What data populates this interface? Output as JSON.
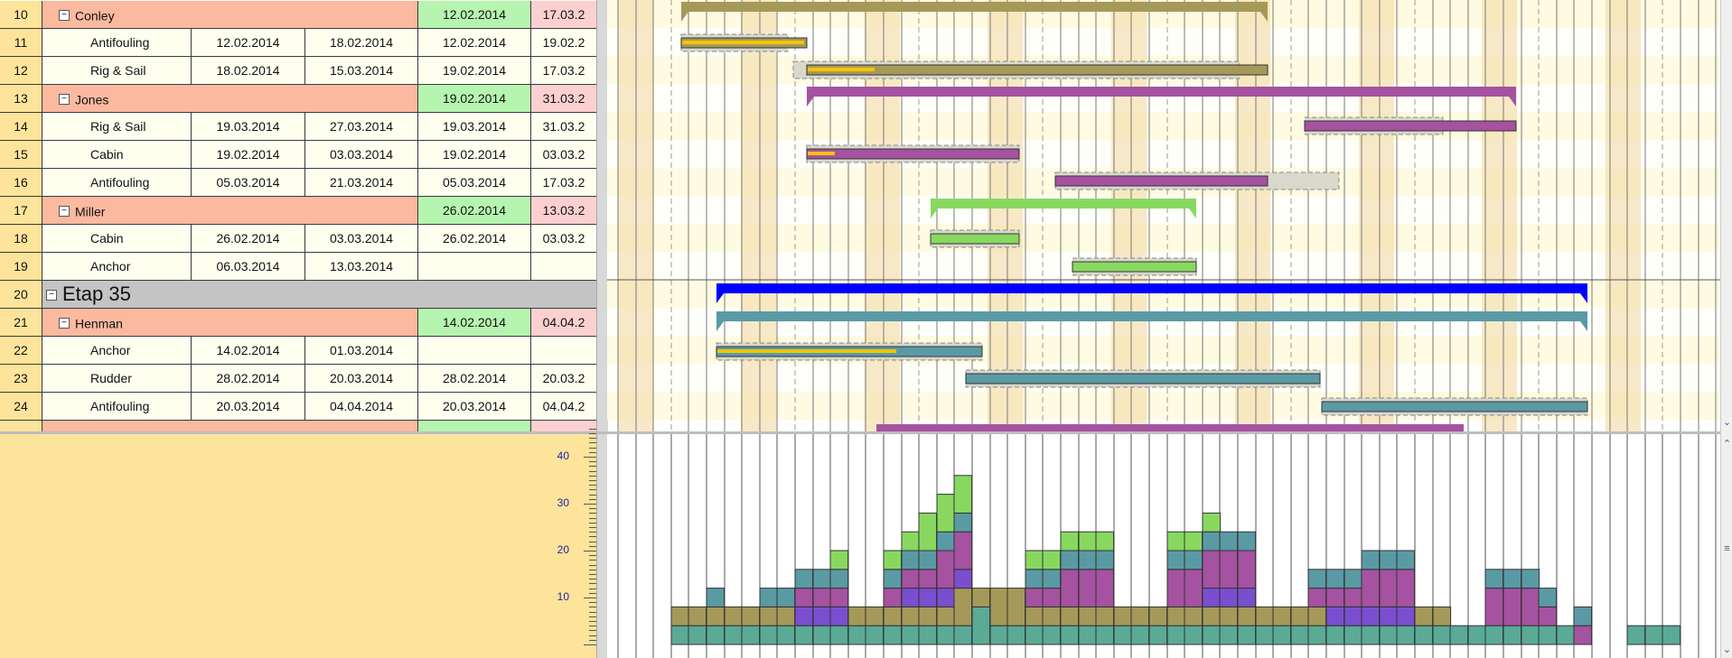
{
  "table": {
    "rows": [
      {
        "num": "10",
        "kind": "group",
        "name": "Conley",
        "d3": "12.02.2014",
        "d4": "17.03.2"
      },
      {
        "num": "11",
        "kind": "task",
        "name": "Antifouling",
        "d1": "12.02.2014",
        "d2": "18.02.2014",
        "d3": "12.02.2014",
        "d4": "19.02.2"
      },
      {
        "num": "12",
        "kind": "task",
        "name": "Rig & Sail",
        "d1": "18.02.2014",
        "d2": "15.03.2014",
        "d3": "19.02.2014",
        "d4": "17.03.2"
      },
      {
        "num": "13",
        "kind": "group",
        "name": "Jones",
        "d3": "19.02.2014",
        "d4": "31.03.2"
      },
      {
        "num": "14",
        "kind": "task",
        "name": "Rig & Sail",
        "d1": "19.03.2014",
        "d2": "27.03.2014",
        "d3": "19.03.2014",
        "d4": "31.03.2"
      },
      {
        "num": "15",
        "kind": "task",
        "name": "Cabin",
        "d1": "19.02.2014",
        "d2": "03.03.2014",
        "d3": "19.02.2014",
        "d4": "03.03.2"
      },
      {
        "num": "16",
        "kind": "task",
        "name": "Antifouling",
        "d1": "05.03.2014",
        "d2": "21.03.2014",
        "d3": "05.03.2014",
        "d4": "17.03.2"
      },
      {
        "num": "17",
        "kind": "group",
        "name": "Miller",
        "d3": "26.02.2014",
        "d4": "13.03.2"
      },
      {
        "num": "18",
        "kind": "task",
        "name": "Cabin",
        "d1": "26.02.2014",
        "d2": "03.03.2014",
        "d3": "26.02.2014",
        "d4": "03.03.2"
      },
      {
        "num": "19",
        "kind": "task",
        "name": "Anchor",
        "d1": "06.03.2014",
        "d2": "13.03.2014",
        "d3": "",
        "d4": ""
      },
      {
        "num": "20",
        "kind": "stage",
        "name": "Etap 35"
      },
      {
        "num": "21",
        "kind": "group",
        "name": "Henman",
        "d3": "14.02.2014",
        "d4": "04.04.2"
      },
      {
        "num": "22",
        "kind": "task",
        "name": "Anchor",
        "d1": "14.02.2014",
        "d2": "01.03.2014",
        "d3": "",
        "d4": ""
      },
      {
        "num": "23",
        "kind": "task",
        "name": "Rudder",
        "d1": "28.02.2014",
        "d2": "20.03.2014",
        "d3": "28.02.2014",
        "d4": "20.03.2"
      },
      {
        "num": "24",
        "kind": "task",
        "name": "Antifouling",
        "d1": "20.03.2014",
        "d2": "04.04.2014",
        "d3": "20.03.2014",
        "d4": "04.04.2"
      }
    ],
    "toggle_glyph": "−"
  },
  "histogram_axis": {
    "labels": [
      "40",
      "30",
      "20",
      "10"
    ],
    "values": [
      40,
      30,
      20,
      10
    ],
    "max_visible": 46
  },
  "colors": {
    "olive": "#a5995a",
    "purple": "#a552a0",
    "green": "#88d860",
    "teal": "#5a9aa5",
    "blue": "#0000ff",
    "yellow": "#f5c400",
    "seagreen": "#5aaa96",
    "violet": "#7a4fcf",
    "group_cell": "#fbb9a0",
    "start_cell": "#b6f5b0",
    "end_cell": "#fcd0d0",
    "stage_cell": "#c4c4c4",
    "rownum": "#fde49a"
  },
  "scroll": {
    "up": "⌃",
    "down": "⌄",
    "grip": "≡"
  }
}
